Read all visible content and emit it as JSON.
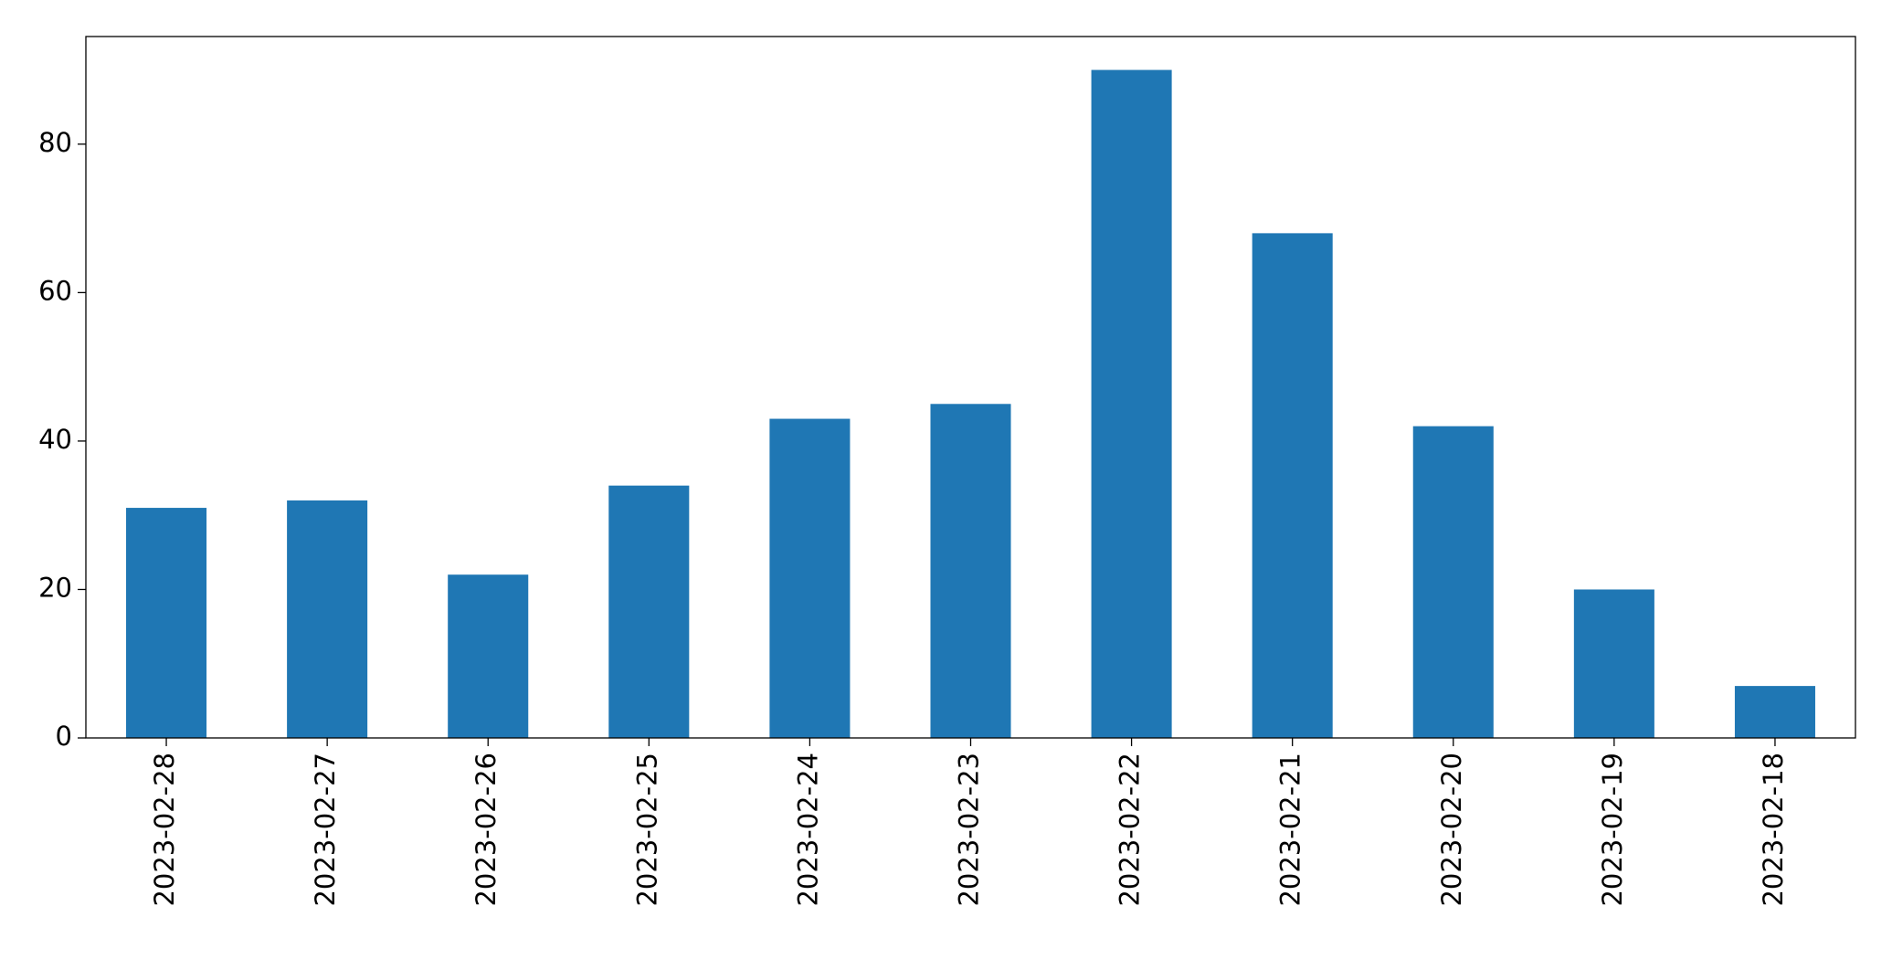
{
  "chart_data": {
    "type": "bar",
    "categories": [
      "2023-02-28",
      "2023-02-27",
      "2023-02-26",
      "2023-02-25",
      "2023-02-24",
      "2023-02-23",
      "2023-02-22",
      "2023-02-21",
      "2023-02-20",
      "2023-02-19",
      "2023-02-18"
    ],
    "values": [
      31,
      32,
      22,
      34,
      43,
      45,
      90,
      68,
      42,
      20,
      7
    ],
    "color": "#1f77b4",
    "ylim": [
      0,
      94.5
    ],
    "yticks": [
      0,
      20,
      40,
      60,
      80
    ],
    "grid": false
  }
}
